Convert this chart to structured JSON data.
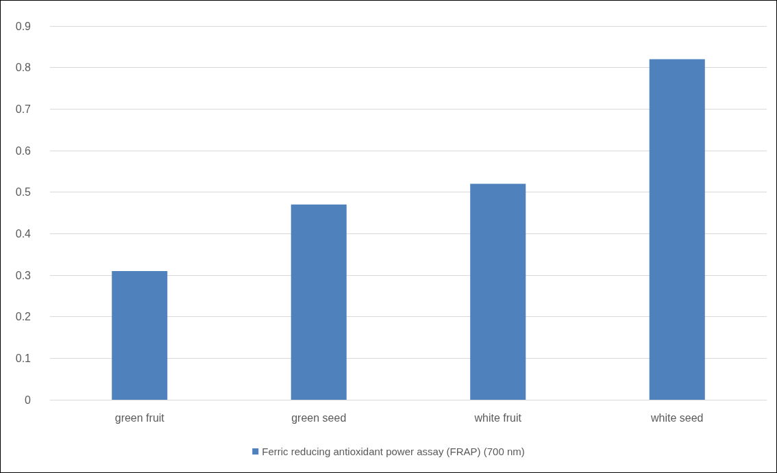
{
  "chart_data": {
    "type": "bar",
    "categories": [
      "green fruit",
      "green seed",
      "white fruit",
      "white seed"
    ],
    "series": [
      {
        "name": "Ferric reducing antioxidant power assay (FRAP) (700 nm)",
        "color": "#4f81bd",
        "values": [
          0.31,
          0.47,
          0.52,
          0.82
        ]
      }
    ],
    "ylim": [
      0,
      0.9
    ],
    "yticks": [
      0,
      0.1,
      0.2,
      0.3,
      0.4,
      0.5,
      0.6,
      0.7,
      0.8,
      0.9
    ],
    "grid": "y",
    "legend": "bottom"
  }
}
